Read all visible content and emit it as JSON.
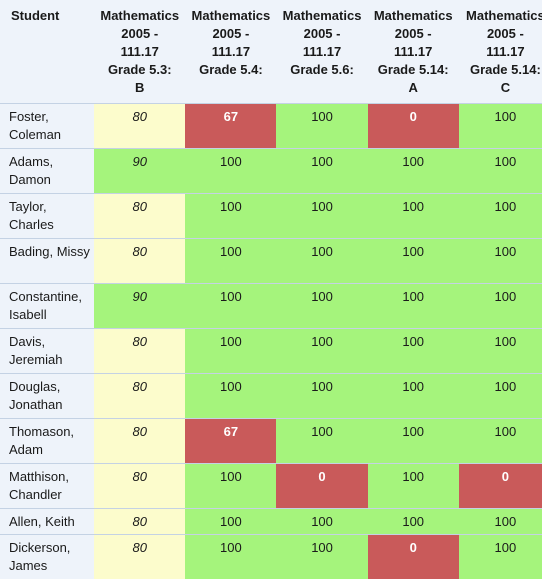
{
  "table": {
    "student_header": "Student",
    "columns": [
      {
        "lines": [
          "Mathematics",
          "2005 -",
          "111.17",
          "Grade 5.3:",
          "B"
        ]
      },
      {
        "lines": [
          "Mathematics",
          "2005 -",
          "111.17",
          "Grade 5.4:",
          ""
        ]
      },
      {
        "lines": [
          "Mathematics",
          "2005 -",
          "111.17",
          "Grade 5.6:",
          ""
        ]
      },
      {
        "lines": [
          "Mathematics",
          "2005 -",
          "111.17",
          "Grade 5.14:",
          "A"
        ]
      },
      {
        "lines": [
          "Mathematics",
          "2005 -",
          "111.17",
          "Grade 5.14:",
          "C"
        ]
      }
    ],
    "rows": [
      {
        "name": "Foster, Coleman",
        "scores": [
          "80",
          "67",
          "100",
          "0",
          "100"
        ],
        "status": [
          "yellow",
          "red",
          "green",
          "red",
          "green"
        ]
      },
      {
        "name": "Adams, Damon",
        "scores": [
          "90",
          "100",
          "100",
          "100",
          "100"
        ],
        "status": [
          "green",
          "green",
          "green",
          "green",
          "green"
        ]
      },
      {
        "name": "Taylor, Charles",
        "scores": [
          "80",
          "100",
          "100",
          "100",
          "100"
        ],
        "status": [
          "yellow",
          "green",
          "green",
          "green",
          "green"
        ]
      },
      {
        "name": "Bading, Missy",
        "scores": [
          "80",
          "100",
          "100",
          "100",
          "100"
        ],
        "status": [
          "yellow",
          "green",
          "green",
          "green",
          "green"
        ]
      },
      {
        "name": "Constantine, Isabell",
        "scores": [
          "90",
          "100",
          "100",
          "100",
          "100"
        ],
        "status": [
          "green",
          "green",
          "green",
          "green",
          "green"
        ]
      },
      {
        "name": "Davis, Jeremiah",
        "scores": [
          "80",
          "100",
          "100",
          "100",
          "100"
        ],
        "status": [
          "yellow",
          "green",
          "green",
          "green",
          "green"
        ]
      },
      {
        "name": "Douglas, Jonathan",
        "scores": [
          "80",
          "100",
          "100",
          "100",
          "100"
        ],
        "status": [
          "yellow",
          "green",
          "green",
          "green",
          "green"
        ]
      },
      {
        "name": "Thomason, Adam",
        "scores": [
          "80",
          "67",
          "100",
          "100",
          "100"
        ],
        "status": [
          "yellow",
          "red",
          "green",
          "green",
          "green"
        ]
      },
      {
        "name": "Matthison, Chandler",
        "scores": [
          "80",
          "100",
          "0",
          "100",
          "0"
        ],
        "status": [
          "yellow",
          "green",
          "red",
          "green",
          "red"
        ]
      },
      {
        "name": "Allen, Keith",
        "scores": [
          "80",
          "100",
          "100",
          "100",
          "100"
        ],
        "status": [
          "yellow",
          "green",
          "green",
          "green",
          "green"
        ]
      },
      {
        "name": "Dickerson, James",
        "scores": [
          "80",
          "100",
          "100",
          "0",
          "100"
        ],
        "status": [
          "yellow",
          "green",
          "green",
          "red",
          "green"
        ]
      }
    ]
  },
  "colors": {
    "green": "#a5f47c",
    "yellow": "#fcfccc",
    "red": "#c95a5a",
    "student_bg": "#eef3fa",
    "row_border": "#c4d2e4"
  }
}
